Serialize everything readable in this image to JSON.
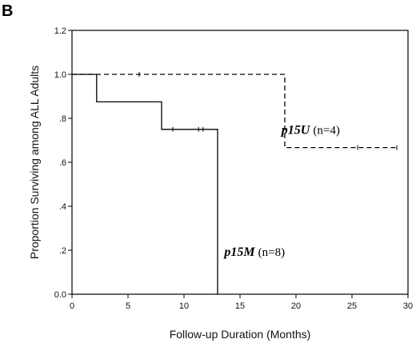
{
  "panel_label": "B",
  "chart_data": {
    "type": "line",
    "subtype": "kaplan-meier step curves",
    "xlabel": "Follow-up Duration (Months)",
    "ylabel": "Proportion Surviving among ALL Adults",
    "xlim": [
      0,
      30
    ],
    "ylim": [
      0,
      1.2
    ],
    "xticks": [
      0,
      5,
      10,
      15,
      20,
      25,
      30
    ],
    "xtick_labels": [
      "0",
      "5",
      "10",
      "15",
      "20",
      "25",
      "30"
    ],
    "yticks": [
      0,
      0.2,
      0.4,
      0.6,
      0.8,
      1.0,
      1.2
    ],
    "ytick_labels": [
      "0.0",
      ".2",
      ".4",
      ".6",
      ".8",
      "1.0",
      "1.2"
    ],
    "grid": false,
    "series": [
      {
        "name": "p15U",
        "n_label": "(n=4)",
        "style": "dashed",
        "color": "#000000",
        "steps": [
          [
            0.0,
            1.0
          ],
          [
            2.0,
            1.0
          ],
          [
            19.0,
            1.0
          ],
          [
            19.0,
            0.667
          ],
          [
            29.0,
            0.667
          ]
        ],
        "censored": [
          [
            6.0,
            1.0
          ],
          [
            25.5,
            0.667
          ],
          [
            29.0,
            0.667
          ]
        ]
      },
      {
        "name": "p15M",
        "n_label": "(n=8)",
        "style": "solid",
        "color": "#000000",
        "steps": [
          [
            0.0,
            1.0
          ],
          [
            2.2,
            1.0
          ],
          [
            2.2,
            0.875
          ],
          [
            8.0,
            0.875
          ],
          [
            8.0,
            0.75
          ],
          [
            13.0,
            0.75
          ],
          [
            13.0,
            0.0
          ]
        ],
        "censored": [
          [
            9.0,
            0.75
          ],
          [
            11.3,
            0.75
          ],
          [
            11.7,
            0.75
          ]
        ]
      }
    ]
  }
}
